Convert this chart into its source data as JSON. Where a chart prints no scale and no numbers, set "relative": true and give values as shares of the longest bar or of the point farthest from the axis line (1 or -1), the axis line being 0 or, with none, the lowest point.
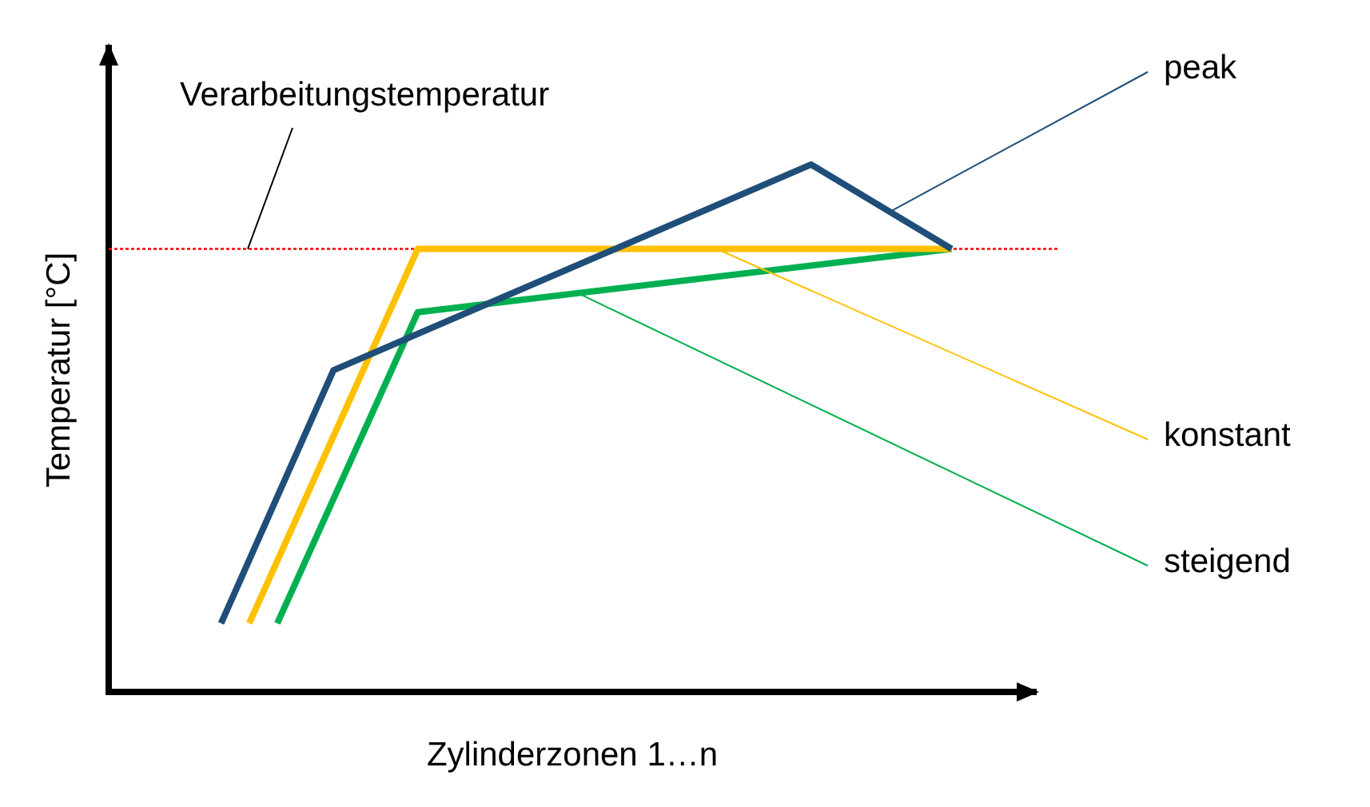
{
  "chart_data": {
    "type": "line",
    "relative": true,
    "xlabel": "Zylinderzonen 1…n",
    "ylabel": "Temperatur [°C]",
    "marker": "none",
    "categories": [
      null,
      null,
      null,
      null,
      null,
      null,
      null,
      null,
      null,
      null,
      null,
      null,
      null,
      null,
      null,
      null,
      null,
      null,
      null,
      null,
      null,
      null,
      null,
      null,
      null,
      null,
      null,
      null,
      null,
      null,
      null,
      null,
      null,
      null
    ],
    "series": [
      {
        "name": "peak",
        "color": "#1f4e79",
        "values": [
          null,
          null,
          null,
          null,
          0.13,
          null,
          null,
          null,
          0.61,
          null,
          null,
          null,
          null,
          null,
          null,
          null,
          null,
          null,
          null,
          null,
          null,
          null,
          null,
          null,
          null,
          1,
          null,
          null,
          null,
          null,
          0.84,
          null,
          null,
          null
        ]
      },
      {
        "name": "konstant",
        "color": "#ffc000",
        "values": [
          null,
          null,
          null,
          null,
          null,
          0.13,
          null,
          null,
          null,
          null,
          null,
          0.84,
          null,
          null,
          null,
          null,
          null,
          null,
          null,
          null,
          null,
          null,
          null,
          null,
          null,
          null,
          null,
          null,
          null,
          null,
          0.84,
          null,
          null,
          null
        ]
      },
      {
        "name": "steigend",
        "color": "#00b050",
        "values": [
          null,
          null,
          null,
          null,
          null,
          null,
          0.13,
          null,
          null,
          null,
          null,
          0.72,
          null,
          null,
          null,
          null,
          null,
          null,
          null,
          null,
          null,
          null,
          null,
          null,
          null,
          null,
          null,
          null,
          null,
          null,
          0.84,
          null,
          null,
          null
        ]
      }
    ],
    "ref_lines": [
      {
        "axis": "y",
        "value": 0.84,
        "label": "Verarbeitungstemperatur",
        "color": "#ff0000",
        "line_style": "dotted"
      }
    ]
  }
}
